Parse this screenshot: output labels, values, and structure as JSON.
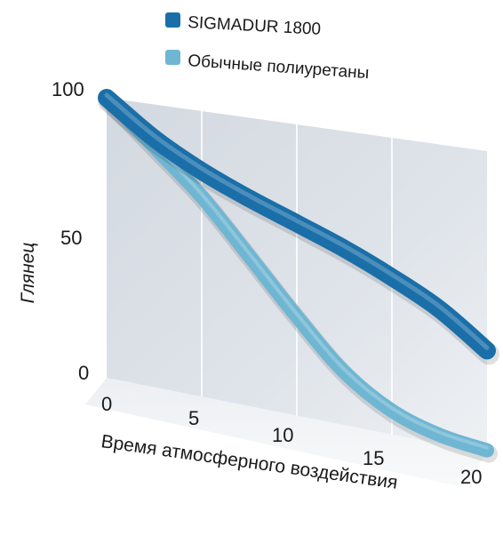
{
  "chart_data": {
    "type": "line",
    "title": "",
    "xlabel": "Время атмосферного воздействия",
    "ylabel": "Глянец",
    "x_ticks": [
      "0",
      "5",
      "10",
      "15",
      "20"
    ],
    "y_ticks": [
      "0",
      "50",
      "100"
    ],
    "xlim": [
      0,
      20
    ],
    "ylim": [
      0,
      100
    ],
    "grid": true,
    "legend_position": "top",
    "series": [
      {
        "name": "SIGMADUR 1800",
        "color": "#1a6fa8",
        "x": [
          0,
          2.5,
          5,
          7.5,
          10,
          12.5,
          15,
          17.5,
          20
        ],
        "y": [
          100,
          88,
          79,
          72,
          66,
          60,
          53,
          45,
          34
        ]
      },
      {
        "name": "Обычные полиуретаны",
        "color": "#6fb6d3",
        "x": [
          0,
          2.5,
          5,
          7.5,
          10,
          12.5,
          15,
          17.5,
          20
        ],
        "y": [
          100,
          85,
          70,
          52,
          34,
          18,
          8,
          3,
          1
        ]
      }
    ]
  }
}
